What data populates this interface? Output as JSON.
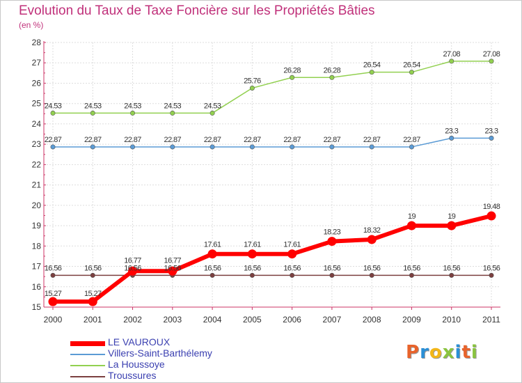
{
  "title": "Evolution du Taux de Taxe Foncière sur les Propriétés Bâties",
  "unit_label": "(en %)",
  "logo": {
    "letters": [
      "P",
      "r",
      "o",
      "x",
      "i",
      "t",
      "i"
    ],
    "colors": [
      "#e8632b",
      "#2a8fd6",
      "#f2b619",
      "#8ac43f",
      "#2a8fd6",
      "#e8632b",
      "#8ac43f"
    ]
  },
  "chart_data": {
    "type": "line",
    "title": "Evolution du Taux de Taxe Foncière sur les Propriétés Bâties",
    "ylabel": "(en %)",
    "xlabel": "",
    "x": [
      "2000",
      "2001",
      "2002",
      "2003",
      "2004",
      "2005",
      "2006",
      "2007",
      "2008",
      "2009",
      "2010",
      "2011"
    ],
    "ylim": [
      15,
      28
    ],
    "yticks": [
      15,
      16,
      17,
      18,
      19,
      20,
      21,
      22,
      23,
      24,
      25,
      26,
      27,
      28
    ],
    "grid": true,
    "legend": "bottom-left",
    "series": [
      {
        "name": "LE VAUROUX",
        "color": "#ff0000",
        "values": [
          15.27,
          15.27,
          16.77,
          16.77,
          17.61,
          17.61,
          17.61,
          18.23,
          18.32,
          19,
          19,
          19.48
        ],
        "labels": [
          "15.27",
          "15.27",
          "16.77",
          "16.77",
          "17.61",
          "17.61",
          "17.61",
          "18.23",
          "18.32",
          "19",
          "19",
          "19.48"
        ]
      },
      {
        "name": "Villers-Saint-Barthélemy",
        "color": "#5b9bd5",
        "values": [
          22.87,
          22.87,
          22.87,
          22.87,
          22.87,
          22.87,
          22.87,
          22.87,
          22.87,
          22.87,
          23.3,
          23.3
        ],
        "labels": [
          "22.87",
          "22.87",
          "22.87",
          "22.87",
          "22.87",
          "22.87",
          "22.87",
          "22.87",
          "22.87",
          "22.87",
          "23.3",
          "23.3"
        ]
      },
      {
        "name": "La Houssoye",
        "color": "#92d050",
        "values": [
          24.53,
          24.53,
          24.53,
          24.53,
          24.53,
          25.76,
          26.28,
          26.28,
          26.54,
          26.54,
          27.08,
          27.08
        ],
        "labels": [
          "24.53",
          "24.53",
          "24.53",
          "24.53",
          "24.53",
          "25.76",
          "26.28",
          "26.28",
          "26.54",
          "26.54",
          "27.08",
          "27.08"
        ]
      },
      {
        "name": "Troussures",
        "color": "#7b3f3f",
        "values": [
          16.56,
          16.56,
          16.56,
          16.56,
          16.56,
          16.56,
          16.56,
          16.56,
          16.56,
          16.56,
          16.56,
          16.56
        ],
        "labels": [
          "16.56",
          "16.56",
          "16.56",
          "16.56",
          "16.56",
          "16.56",
          "16.56",
          "16.56",
          "16.56",
          "16.56",
          "16.56",
          "16.56"
        ]
      }
    ]
  }
}
